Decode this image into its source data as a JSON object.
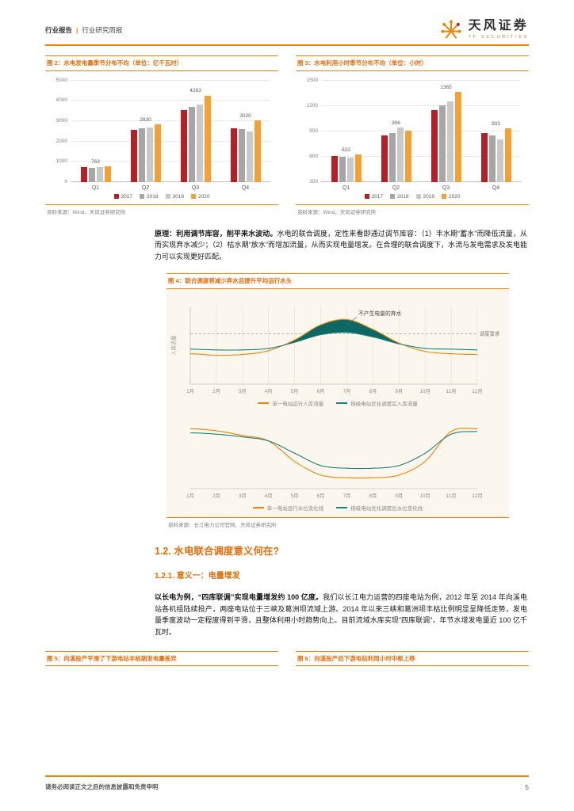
{
  "page": {
    "header": {
      "doc_type": "行业报告",
      "divider": "|",
      "doc_subtype": "行业研究周报",
      "brand_name": "天风证券",
      "brand_sub": "TF SECURITIES"
    },
    "footer": {
      "disclaimer": "请务必阅读正文之后的信息披露和免责申明",
      "page_number": "5"
    }
  },
  "body": {
    "para1_lead": "原理：利用调节库容，削平来水波动。",
    "para1_rest": "水电的联合调度，定性来看即通过调节库容：（1）丰水期“蓄水”而降低流量，从而实现弃水减少；（2）枯水期“放水”而增加流量，从而实现电量增发。在合理的联合调度下，水流与发电需求及发电能力可以实现更好匹配。",
    "section_heading": "1.2. 水电联合调度意义何在?",
    "sub_heading": "1.2.1. 意义一：电量增发",
    "para2_lead": "以长电为例，“四库联调”实现电量增发约 100 亿度。",
    "para2_rest": "我们以长江电力运营的四座电站为例，2012 年至 2014 年向溪电站各机组陆续投产，两座电站位于三峡及葛洲坝流域上游。2014 年以来三峡和葛洲坝丰枯比例明显呈降低走势，发电量季度波动一定程度得到平滑，且整体利用小时趋势向上。目前流域水库实现“四库联调”，年节水增发电量近 100 亿千瓦时。",
    "fig5_title": "图 5：向溪投产平滑了下游电站丰枯期发电量差异",
    "fig6_title": "图 6：向溪投产后下游电站利用小时中枢上移"
  },
  "colors": {
    "accent_orange": "#F08300",
    "title_orange": "#E36C09",
    "series_2017": "#B42025",
    "series_2018": "#A6A6A6",
    "series_2019": "#C9C9C9",
    "series_2020": "#F5A033",
    "line_orange": "#F08300",
    "line_teal": "#16827C",
    "spill_fill": "#0C6862",
    "fig4_background": "#FBF7EE"
  },
  "chart_data": [
    {
      "id": "fig2",
      "type": "bar",
      "title": "图 2：水电发电量季节分布不均（单位：亿千瓦时）",
      "source": "资料来源：Wind，天风证券研究所",
      "categories": [
        "Q1",
        "Q2",
        "Q3",
        "Q4"
      ],
      "series": [
        {
          "name": "2017",
          "color": "#B42025",
          "values": [
            720,
            2580,
            3560,
            2660
          ]
        },
        {
          "name": "2018",
          "color": "#A6A6A6",
          "values": [
            700,
            2640,
            3720,
            2600
          ]
        },
        {
          "name": "2019",
          "color": "#C9C9C9",
          "values": [
            740,
            2700,
            3800,
            2500
          ]
        },
        {
          "name": "2020",
          "color": "#F5A033",
          "values": [
            763,
            2830,
            4263,
            3020
          ]
        }
      ],
      "data_labels": [
        763,
        2830,
        4263,
        3020
      ],
      "ylim": [
        0,
        5000
      ],
      "yticks": [
        0,
        1000,
        2000,
        3000,
        4000,
        5000
      ],
      "grid": true,
      "legend_position": "bottom"
    },
    {
      "id": "fig3",
      "type": "bar",
      "title": "图 3：水电利用小时季节分布不均（单位：小时）",
      "source": "资料来源：Wind，天风证券研究所",
      "categories": [
        "Q1",
        "Q2",
        "Q3",
        "Q4"
      ],
      "series": [
        {
          "name": "2017",
          "color": "#B42025",
          "values": [
            610,
            850,
            1150,
            880
          ]
        },
        {
          "name": "2018",
          "color": "#A6A6A6",
          "values": [
            600,
            880,
            1210,
            850
          ]
        },
        {
          "name": "2019",
          "color": "#C9C9C9",
          "values": [
            590,
            940,
            1250,
            800
          ]
        },
        {
          "name": "2020",
          "color": "#F5A033",
          "values": [
            622,
            906,
            1365,
            933
          ]
        }
      ],
      "data_labels": [
        622,
        906,
        1365,
        933
      ],
      "ylim": [
        300,
        1500
      ],
      "yticks": [
        300,
        600,
        900,
        1200,
        1500
      ],
      "grid": true,
      "legend_position": "bottom"
    },
    {
      "id": "fig4",
      "type": "line",
      "title": "图 4：联合调度将减少弃水且提升平均运行水头",
      "source": "资料来源：长江电力公司官网，天风证券研究所",
      "x_labels": [
        "1月",
        "2月",
        "3月",
        "4月",
        "5月",
        "6月",
        "7月",
        "8月",
        "9月",
        "10月",
        "11月",
        "12月"
      ],
      "panels": [
        {
          "name": "inflow",
          "ylabel": "入库流量",
          "requirement_level": 66,
          "annotations": {
            "spill": "不产生电量的弃水",
            "requirement": "调度要求"
          },
          "series": [
            {
              "name": "单一电站运行入库流量",
              "color": "#F08300",
              "values": [
                40,
                38,
                39,
                44,
                58,
                78,
                85,
                72,
                54,
                43,
                40,
                39
              ]
            },
            {
              "name": "梯级电站优化调度后入库流量",
              "color": "#16827C",
              "values": [
                46,
                45,
                45,
                47,
                55,
                65,
                68,
                62,
                53,
                47,
                46,
                45
              ]
            }
          ]
        },
        {
          "name": "water-level",
          "series": [
            {
              "name": "单一电站运行水位变化线",
              "color": "#F08300",
              "values": [
                88,
                85,
                78,
                70,
                40,
                20,
                16,
                16,
                20,
                40,
                84,
                88
              ]
            },
            {
              "name": "梯级电站优化调度后水位变化线",
              "color": "#16827C",
              "values": [
                82,
                80,
                76,
                70,
                52,
                34,
                30,
                30,
                34,
                52,
                80,
                84
              ]
            }
          ]
        }
      ]
    }
  ]
}
